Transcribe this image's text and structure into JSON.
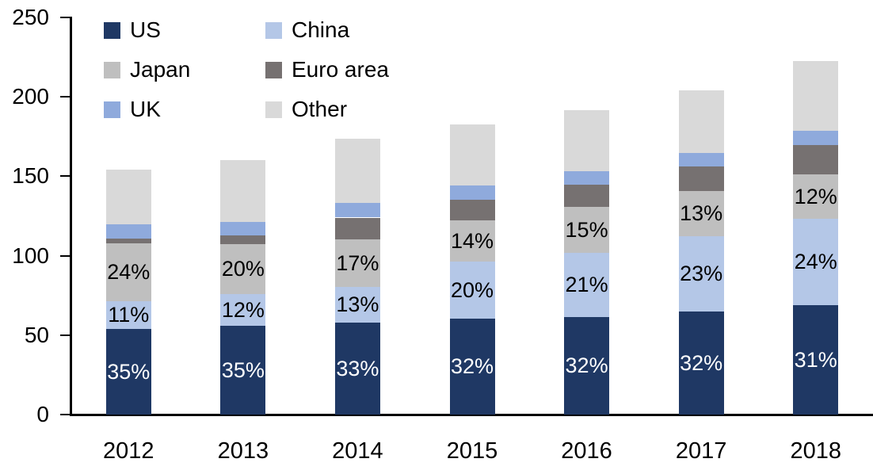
{
  "chart_data": {
    "type": "bar",
    "stacked": true,
    "title": "",
    "xlabel": "",
    "ylabel": "",
    "categories": [
      "2012",
      "2013",
      "2014",
      "2015",
      "2016",
      "2017",
      "2018"
    ],
    "series": [
      {
        "name": "US",
        "color": "#1F3864",
        "label_color": "#FFFFFF",
        "values": [
          54,
          56,
          58,
          60.5,
          61.5,
          65,
          69
        ],
        "labels": [
          "35%",
          "35%",
          "33%",
          "32%",
          "32%",
          "32%",
          "31%"
        ]
      },
      {
        "name": "China",
        "color": "#B4C7E7",
        "label_color": "#000000",
        "values": [
          17.5,
          20,
          22.5,
          36,
          40.5,
          47.5,
          54.5
        ],
        "labels": [
          "11%",
          "12%",
          "13%",
          "20%",
          "21%",
          "23%",
          "24%"
        ]
      },
      {
        "name": "Japan",
        "color": "#BFBFBF",
        "label_color": "#000000",
        "values": [
          36.5,
          31.5,
          30,
          26,
          28.5,
          28,
          27.5
        ],
        "labels": [
          "24%",
          "20%",
          "17%",
          "14%",
          "15%",
          "13%",
          "12%"
        ]
      },
      {
        "name": "Euro area",
        "color": "#767171",
        "label_color": null,
        "values": [
          3,
          5.5,
          13.5,
          12.5,
          14,
          15.5,
          18.5
        ],
        "labels": [
          null,
          null,
          null,
          null,
          null,
          null,
          null
        ]
      },
      {
        "name": "UK",
        "color": "#8FAADC",
        "label_color": null,
        "values": [
          9,
          8.5,
          9,
          9,
          8.5,
          8.5,
          9
        ],
        "labels": [
          null,
          null,
          null,
          null,
          null,
          null,
          null
        ]
      },
      {
        "name": "Other",
        "color": "#D9D9D9",
        "label_color": null,
        "values": [
          34,
          38.5,
          40.5,
          38.5,
          38.5,
          39.5,
          44
        ],
        "labels": [
          null,
          null,
          null,
          null,
          null,
          null,
          null
        ]
      }
    ],
    "totals": [
      154,
      160,
      174,
      182.5,
      191.5,
      204,
      222.5
    ],
    "legend": {
      "position": "top-left",
      "columns": 2,
      "order": [
        "US",
        "China",
        "Japan",
        "Euro area",
        "UK",
        "Other"
      ]
    },
    "y_axis": {
      "ticks": [
        "0",
        "50",
        "100",
        "150",
        "200",
        "250"
      ],
      "tick_values": [
        0,
        50,
        100,
        150,
        200,
        250
      ],
      "range": [
        0,
        250
      ]
    },
    "x_axis": {
      "labels": [
        "2012",
        "2013",
        "2014",
        "2015",
        "2016",
        "2017",
        "2018"
      ]
    },
    "axis_color": "#000000",
    "grid": false,
    "background_color": "#FFFFFF"
  }
}
